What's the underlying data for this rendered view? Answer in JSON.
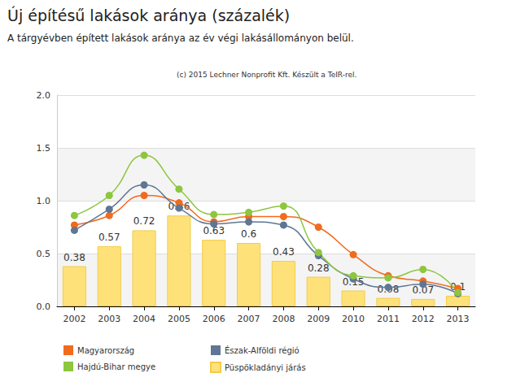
{
  "chart_data": {
    "type": "bar",
    "title": "Új építésű lakások aránya (százalék)",
    "subtitle": "A tárgyévben épített lakások aránya az év végi lakásállományon belül.",
    "annotations": [
      "(c) 2015 Lechner Nonprofit Kft. Készült a TeIR-rel."
    ],
    "categories": [
      "2002",
      "2003",
      "2004",
      "2005",
      "2006",
      "2007",
      "2008",
      "2009",
      "2010",
      "2011",
      "2012",
      "2013"
    ],
    "series": [
      {
        "name": "Magyarország",
        "type": "line",
        "color": "#f26b1d",
        "marker": "circle",
        "line_style": "solid",
        "values": [
          0.77,
          0.86,
          1.05,
          0.98,
          0.8,
          0.85,
          0.85,
          0.75,
          0.49,
          0.29,
          0.24,
          0.17
        ]
      },
      {
        "name": "Észak-Alföldi régió",
        "type": "line",
        "color": "#5f7694",
        "marker": "circle",
        "line_style": "solid",
        "values": [
          0.72,
          0.92,
          1.15,
          0.93,
          0.78,
          0.8,
          0.77,
          0.48,
          0.26,
          0.18,
          0.21,
          0.12
        ]
      },
      {
        "name": "Hajdú-Bihar megye",
        "type": "line",
        "color": "#8dc63f",
        "marker": "circle",
        "line_style": "solid",
        "values": [
          0.86,
          1.05,
          1.43,
          1.11,
          0.87,
          0.89,
          0.95,
          0.51,
          0.29,
          0.27,
          0.35,
          0.13
        ]
      },
      {
        "name": "Püspökladányi járás",
        "type": "bar",
        "color": "#ffe17a",
        "data_labels": true,
        "values": [
          0.38,
          0.57,
          0.72,
          0.86,
          0.63,
          0.6,
          0.43,
          0.28,
          0.15,
          0.08,
          0.07,
          0.1
        ]
      }
    ],
    "ylim": [
      0,
      2
    ],
    "yticks": [
      {
        "value": 0,
        "label": "0.0"
      },
      0.5,
      {
        "value": 1,
        "label": "1.0"
      },
      1.5,
      {
        "value": 2,
        "label": "2.0"
      }
    ],
    "grid": true,
    "legend": "bottom-left"
  }
}
